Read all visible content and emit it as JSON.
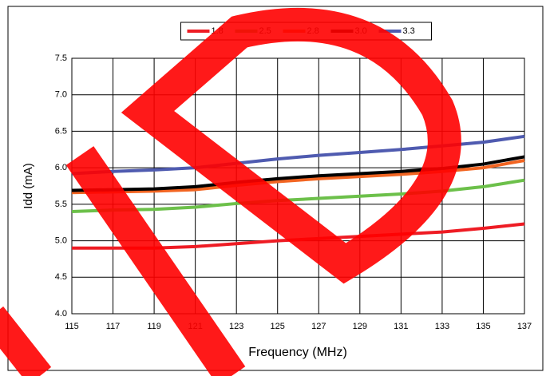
{
  "chart_data": {
    "type": "line",
    "x": [
      115,
      117,
      119,
      121,
      123,
      125,
      127,
      129,
      131,
      133,
      135,
      137
    ],
    "series": [
      {
        "name": "1.8",
        "color": "#ee1c24",
        "values": [
          4.9,
          4.9,
          4.9,
          4.92,
          4.96,
          5.0,
          5.03,
          5.06,
          5.09,
          5.12,
          5.17,
          5.23
        ]
      },
      {
        "name": "2.5",
        "color": "#6cc04a",
        "values": [
          5.4,
          5.42,
          5.43,
          5.46,
          5.51,
          5.55,
          5.58,
          5.61,
          5.64,
          5.68,
          5.74,
          5.83
        ]
      },
      {
        "name": "2.8",
        "color": "#f26522",
        "values": [
          5.66,
          5.67,
          5.68,
          5.7,
          5.76,
          5.81,
          5.85,
          5.88,
          5.91,
          5.95,
          6.0,
          6.1
        ]
      },
      {
        "name": "3.0",
        "color": "#000000",
        "values": [
          5.69,
          5.7,
          5.71,
          5.74,
          5.8,
          5.85,
          5.89,
          5.92,
          5.95,
          5.99,
          6.05,
          6.15
        ]
      },
      {
        "name": "3.3",
        "color": "#4f5bb0",
        "values": [
          5.92,
          5.95,
          5.97,
          6.0,
          6.06,
          6.12,
          6.17,
          6.21,
          6.25,
          6.3,
          6.35,
          6.43
        ]
      }
    ],
    "xlabel": "Frequency (MHz)",
    "ylabel": "Idd (mA)",
    "xlim": [
      115,
      137
    ],
    "xticks": [
      115,
      117,
      119,
      121,
      123,
      125,
      127,
      129,
      131,
      133,
      135,
      137
    ],
    "ylim": [
      4,
      7.5
    ],
    "yticks": [
      {
        "value": 4,
        "label": "4.0"
      },
      {
        "value": 4.5,
        "label": "4.5"
      },
      {
        "value": 5,
        "label": "5.0"
      },
      {
        "value": 5.5,
        "label": "5.5"
      },
      {
        "value": 6,
        "label": "6.0"
      },
      {
        "value": 6.5,
        "label": "6.5"
      },
      {
        "value": 7,
        "label": "7.0"
      },
      {
        "value": 7.5,
        "label": "7.5"
      }
    ],
    "grid": true,
    "legend": "top"
  }
}
